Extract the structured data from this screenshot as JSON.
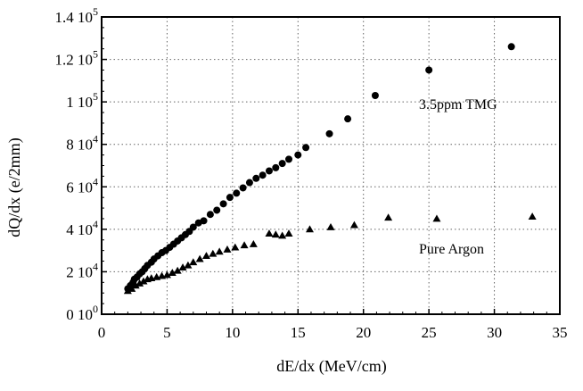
{
  "chart_data": {
    "type": "scatter",
    "xlabel": "dE/dx (MeV/cm)",
    "ylabel": "dQ/dx (e/2mm)",
    "xlim": [
      0,
      35
    ],
    "ylim": [
      0,
      140000
    ],
    "grid": "dotted",
    "x_ticks": [
      {
        "value": 0,
        "label": "0"
      },
      {
        "value": 5,
        "label": "5"
      },
      {
        "value": 10,
        "label": "10"
      },
      {
        "value": 15,
        "label": "15"
      },
      {
        "value": 20,
        "label": "20"
      },
      {
        "value": 25,
        "label": "25"
      },
      {
        "value": 30,
        "label": "30"
      },
      {
        "value": 35,
        "label": "35"
      }
    ],
    "y_ticks": [
      {
        "value": 0,
        "mantissa": "0 10",
        "exp": "0"
      },
      {
        "value": 20000,
        "mantissa": "2 10",
        "exp": "4"
      },
      {
        "value": 40000,
        "mantissa": "4 10",
        "exp": "4"
      },
      {
        "value": 60000,
        "mantissa": "6 10",
        "exp": "4"
      },
      {
        "value": 80000,
        "mantissa": "8 10",
        "exp": "4"
      },
      {
        "value": 100000,
        "mantissa": "1 10",
        "exp": "5"
      },
      {
        "value": 120000,
        "mantissa": "1.2 10",
        "exp": "5"
      },
      {
        "value": 140000,
        "mantissa": "1.4 10",
        "exp": "5"
      }
    ],
    "series": [
      {
        "name": "3.5ppm TMG",
        "marker": "circle",
        "color": "#000000",
        "x": [
          2.0,
          2.2,
          2.4,
          2.5,
          2.7,
          2.9,
          3.1,
          3.3,
          3.5,
          3.8,
          4.0,
          4.3,
          4.6,
          4.9,
          5.2,
          5.5,
          5.8,
          6.1,
          6.4,
          6.7,
          7.0,
          7.4,
          7.8,
          8.3,
          8.8,
          9.3,
          9.8,
          10.3,
          10.8,
          11.3,
          11.8,
          12.3,
          12.8,
          13.3,
          13.8,
          14.3,
          15.0,
          15.6,
          17.4,
          18.8,
          20.9,
          25.0,
          31.3
        ],
        "y": [
          12000,
          13500,
          15000,
          16500,
          17500,
          19000,
          20000,
          21500,
          23000,
          24500,
          26000,
          27500,
          29000,
          30000,
          31500,
          33000,
          34500,
          36000,
          37500,
          39000,
          41000,
          43000,
          44000,
          47000,
          49000,
          52000,
          55000,
          57000,
          59500,
          62000,
          64000,
          65500,
          67500,
          69000,
          71000,
          73000,
          75000,
          78500,
          85000,
          92000,
          103000,
          115000,
          126000
        ]
      },
      {
        "name": "Pure Argon",
        "marker": "triangle",
        "color": "#000000",
        "x": [
          2.0,
          2.3,
          2.6,
          2.9,
          3.2,
          3.5,
          3.8,
          4.2,
          4.6,
          5.0,
          5.4,
          5.8,
          6.2,
          6.6,
          7.0,
          7.5,
          8.0,
          8.5,
          9.0,
          9.6,
          10.2,
          10.9,
          11.6,
          12.8,
          13.3,
          13.8,
          14.3,
          15.9,
          17.5,
          19.3,
          21.9,
          25.6,
          32.9
        ],
        "y": [
          11000,
          12000,
          13500,
          14500,
          15500,
          16500,
          17000,
          17500,
          18000,
          18500,
          19500,
          20500,
          22000,
          23000,
          24500,
          26000,
          27500,
          28500,
          29500,
          30500,
          31500,
          32500,
          33000,
          38000,
          37500,
          37000,
          38000,
          40000,
          41000,
          42000,
          45500,
          45000,
          46000
        ]
      }
    ]
  },
  "annotations": {
    "tmg_label": "3.5ppm TMG",
    "argon_label": "Pure Argon"
  }
}
